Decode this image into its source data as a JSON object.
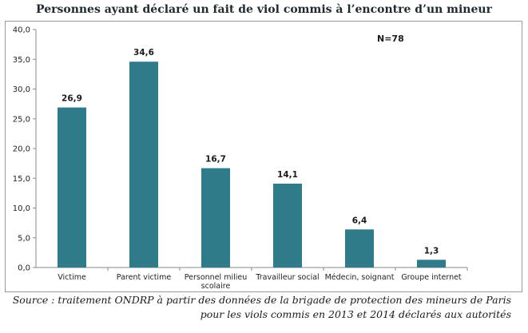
{
  "title": "Personnes ayant déclaré un fait de viol commis à l’encontre d’un mineur",
  "annotation": "N=78",
  "source_line1": "Source : traitement ONDRP à partir des données de la brigade de protection des mineurs de Paris",
  "source_line2": "pour les viols commis en 2013 et 2014 déclarés aux autorités",
  "bar_color": "#2f7b8a",
  "chart_data": {
    "type": "bar",
    "title": "Personnes ayant déclaré un fait de viol commis à l’encontre d’un mineur",
    "categories": [
      "Victime",
      "Parent victime",
      "Personnel milieu scolaire",
      "Travailleur social",
      "Médecin, soignant",
      "Groupe internet"
    ],
    "category_lines": [
      [
        "Victime"
      ],
      [
        "Parent victime"
      ],
      [
        "Personnel milieu",
        "scolaire"
      ],
      [
        "Travailleur social"
      ],
      [
        "Médecin, soignant"
      ],
      [
        "Groupe internet"
      ]
    ],
    "values": [
      26.9,
      34.6,
      16.7,
      14.1,
      6.4,
      1.3
    ],
    "value_labels": [
      "26,9",
      "34,6",
      "16,7",
      "14,1",
      "6,4",
      "1,3"
    ],
    "yticks": [
      "0,0",
      "5,0",
      "10,0",
      "15,0",
      "20,0",
      "25,0",
      "30,0",
      "35,0",
      "40,0"
    ],
    "ylim": [
      0,
      40
    ],
    "xlabel": "",
    "ylabel": "",
    "grid": false,
    "legend": "none"
  }
}
